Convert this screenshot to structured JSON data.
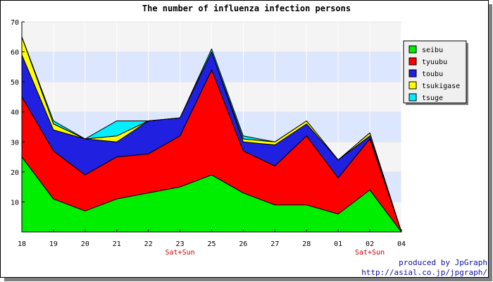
{
  "chart_data": {
    "type": "area",
    "stacked": true,
    "title": "The number of influenza infection persons",
    "categories": [
      "18",
      "19",
      "20",
      "21",
      "22",
      "23",
      "25",
      "26",
      "27",
      "28",
      "01",
      "02",
      "04"
    ],
    "category_sublabels": [
      "",
      "",
      "",
      "",
      "",
      "Sat+Sun",
      "",
      "",
      "",
      "",
      "",
      "Sat+Sun",
      ""
    ],
    "ylim": [
      0,
      70
    ],
    "yticks": [
      "10",
      "20",
      "30",
      "40",
      "50",
      "60",
      "70"
    ],
    "grid": true,
    "legend_position": "right",
    "series": [
      {
        "name": "seibu",
        "color": "#00ee00",
        "values": [
          25,
          11,
          7,
          11,
          13,
          15,
          19,
          13,
          9,
          9,
          6,
          14,
          0
        ]
      },
      {
        "name": "tyuubu",
        "color": "#ff0000",
        "values": [
          20,
          16,
          12,
          14,
          13,
          17,
          35,
          14,
          13,
          23,
          12,
          17,
          0
        ]
      },
      {
        "name": "toubu",
        "color": "#2020e0",
        "values": [
          14,
          7,
          12,
          5,
          11,
          6,
          6,
          3,
          7,
          4,
          6,
          1,
          0
        ]
      },
      {
        "name": "tsukigase",
        "color": "#ffff00",
        "values": [
          6,
          2,
          0,
          2,
          0,
          0,
          0,
          1,
          1,
          1,
          0,
          1,
          0
        ]
      },
      {
        "name": "tsuge",
        "color": "#00eeff",
        "values": [
          0,
          1,
          0,
          5,
          0,
          0,
          1,
          1,
          0,
          0,
          0,
          0,
          0
        ]
      }
    ]
  },
  "credit": {
    "line1": "produced by JpGraph",
    "line2": "http://asial.co.jp/jpgraph/"
  }
}
